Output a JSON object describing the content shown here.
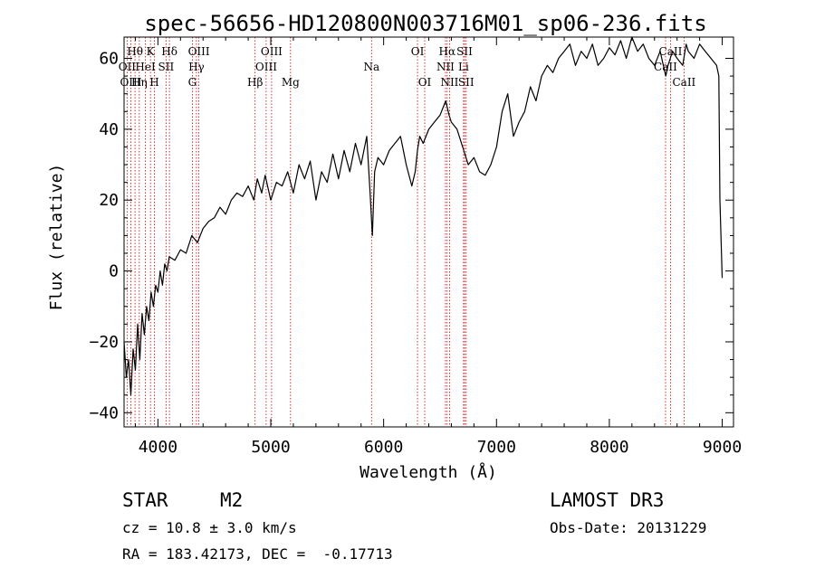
{
  "chart_data": {
    "type": "line",
    "title": "spec-56656-HD120800N003716M01_sp06-236.fits",
    "xlabel": "Wavelength (Å)",
    "ylabel": "Flux (relative)",
    "xlim": [
      3700,
      9100
    ],
    "ylim": [
      -44,
      66
    ],
    "x_ticks": [
      4000,
      5000,
      6000,
      7000,
      8000,
      9000
    ],
    "y_ticks": [
      -40,
      -20,
      0,
      20,
      40,
      60
    ],
    "grid": false,
    "series": [
      {
        "name": "flux",
        "x": [
          3700,
          3720,
          3740,
          3760,
          3780,
          3800,
          3820,
          3840,
          3860,
          3880,
          3900,
          3920,
          3940,
          3960,
          3980,
          4000,
          4020,
          4040,
          4060,
          4080,
          4100,
          4150,
          4200,
          4250,
          4300,
          4350,
          4400,
          4450,
          4500,
          4550,
          4600,
          4650,
          4700,
          4750,
          4800,
          4850,
          4880,
          4920,
          4950,
          5000,
          5050,
          5100,
          5150,
          5200,
          5250,
          5300,
          5350,
          5400,
          5450,
          5500,
          5550,
          5600,
          5650,
          5700,
          5750,
          5800,
          5850,
          5880,
          5900,
          5920,
          5950,
          6000,
          6050,
          6100,
          6150,
          6200,
          6250,
          6280,
          6300,
          6320,
          6350,
          6400,
          6450,
          6500,
          6550,
          6580,
          6600,
          6650,
          6700,
          6750,
          6800,
          6850,
          6900,
          6950,
          7000,
          7050,
          7100,
          7150,
          7200,
          7250,
          7300,
          7350,
          7400,
          7450,
          7500,
          7550,
          7600,
          7650,
          7700,
          7750,
          7800,
          7850,
          7900,
          7950,
          8000,
          8050,
          8100,
          8150,
          8200,
          8250,
          8300,
          8350,
          8400,
          8450,
          8500,
          8520,
          8540,
          8560,
          8600,
          8650,
          8680,
          8700,
          8750,
          8800,
          8850,
          8900,
          8950,
          8970,
          8980,
          9000
        ],
        "y": [
          -20,
          -30,
          -25,
          -35,
          -22,
          -28,
          -15,
          -25,
          -12,
          -18,
          -10,
          -14,
          -6,
          -10,
          -4,
          -6,
          0,
          -4,
          2,
          0,
          4,
          3,
          6,
          5,
          10,
          8,
          12,
          14,
          15,
          18,
          16,
          20,
          22,
          21,
          24,
          20,
          26,
          22,
          27,
          20,
          25,
          24,
          28,
          22,
          30,
          26,
          31,
          20,
          28,
          25,
          33,
          26,
          34,
          28,
          36,
          30,
          38,
          22,
          10,
          28,
          32,
          30,
          34,
          36,
          38,
          30,
          24,
          28,
          34,
          38,
          36,
          40,
          42,
          44,
          48,
          44,
          42,
          40,
          35,
          30,
          32,
          28,
          27,
          30,
          35,
          45,
          50,
          38,
          42,
          45,
          52,
          48,
          55,
          58,
          56,
          60,
          62,
          64,
          58,
          62,
          60,
          64,
          58,
          60,
          63,
          61,
          65,
          60,
          66,
          62,
          64,
          60,
          58,
          62,
          55,
          58,
          60,
          62,
          60,
          58,
          64,
          62,
          60,
          64,
          62,
          60,
          58,
          55,
          20,
          -2
        ]
      }
    ],
    "line_markers": [
      {
        "label": "Hθ",
        "x": 3797,
        "row": 1
      },
      {
        "label": "OII",
        "x": 3727,
        "row": 2
      },
      {
        "label": "OIII",
        "x": 3760,
        "row": 3
      },
      {
        "label": "K",
        "x": 3934,
        "row": 1
      },
      {
        "label": "HeI",
        "x": 3889,
        "row": 2
      },
      {
        "label": "Hη",
        "x": 3835,
        "row": 3
      },
      {
        "label": "Hδ",
        "x": 4102,
        "row": 1
      },
      {
        "label": "SII",
        "x": 4072,
        "row": 2
      },
      {
        "label": "H",
        "x": 3969,
        "row": 3
      },
      {
        "label": "OIII",
        "x": 4363,
        "row": 1
      },
      {
        "label": "Hγ",
        "x": 4341,
        "row": 2
      },
      {
        "label": "G",
        "x": 4305,
        "row": 3
      },
      {
        "label": "OIII",
        "x": 5007,
        "row": 1
      },
      {
        "label": "OIII",
        "x": 4959,
        "row": 2
      },
      {
        "label": "Hβ",
        "x": 4861,
        "row": 3
      },
      {
        "label": "Mg",
        "x": 5175,
        "row": 3
      },
      {
        "label": "Na",
        "x": 5893,
        "row": 2
      },
      {
        "label": "OI",
        "x": 6300,
        "row": 1
      },
      {
        "label": "OI",
        "x": 6364,
        "row": 3
      },
      {
        "label": "Hα",
        "x": 6563,
        "row": 1
      },
      {
        "label": "SII",
        "x": 6717,
        "row": 1
      },
      {
        "label": "NII",
        "x": 6548,
        "row": 2
      },
      {
        "label": "Li",
        "x": 6708,
        "row": 2
      },
      {
        "label": "NII",
        "x": 6584,
        "row": 3
      },
      {
        "label": "SII",
        "x": 6731,
        "row": 3
      },
      {
        "label": "CaII",
        "x": 8542,
        "row": 1
      },
      {
        "label": "CaII",
        "x": 8498,
        "row": 2
      },
      {
        "label": "CaII",
        "x": 8662,
        "row": 3
      }
    ]
  },
  "info": {
    "object_class": "STAR",
    "subclass": "M2",
    "survey": "LAMOST DR3",
    "redshift": "cz = 10.8 ± 3.0 km/s",
    "obs_date": "Obs-Date: 20131229",
    "coords": "RA = 183.42173, DEC =  -0.17713"
  },
  "colors": {
    "spectrum": "#000000",
    "marker_line": "#cc0000",
    "axis": "#000000"
  }
}
